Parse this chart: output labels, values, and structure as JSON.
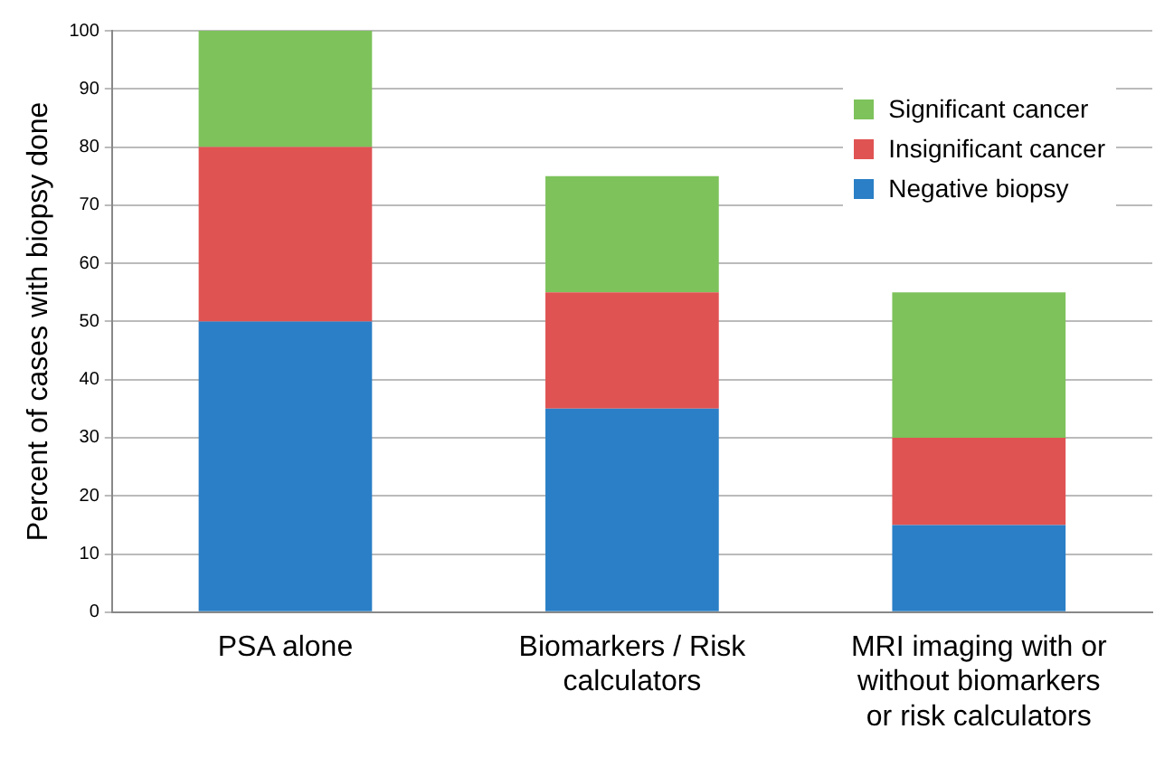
{
  "chart_data": {
    "type": "bar",
    "ylabel": "Percent of cases with biopsy done",
    "categories": [
      "PSA alone",
      "Biomarkers / Risk calculators",
      "MRI imaging with or without biomarkers or risk calculators"
    ],
    "series": [
      {
        "name": "Negative biopsy",
        "color": "#2a7fc6",
        "values": [
          50,
          35,
          15
        ]
      },
      {
        "name": "Insignificant cancer",
        "color": "#e05353",
        "values": [
          30,
          20,
          15
        ]
      },
      {
        "name": "Significant cancer",
        "color": "#7dc25b",
        "values": [
          20,
          20,
          25
        ]
      }
    ],
    "stacked": true,
    "ylim": [
      0,
      100
    ],
    "yticks": [
      0,
      10,
      20,
      30,
      40,
      50,
      60,
      70,
      80,
      90,
      100
    ],
    "grid": "y",
    "legend": "top right"
  }
}
